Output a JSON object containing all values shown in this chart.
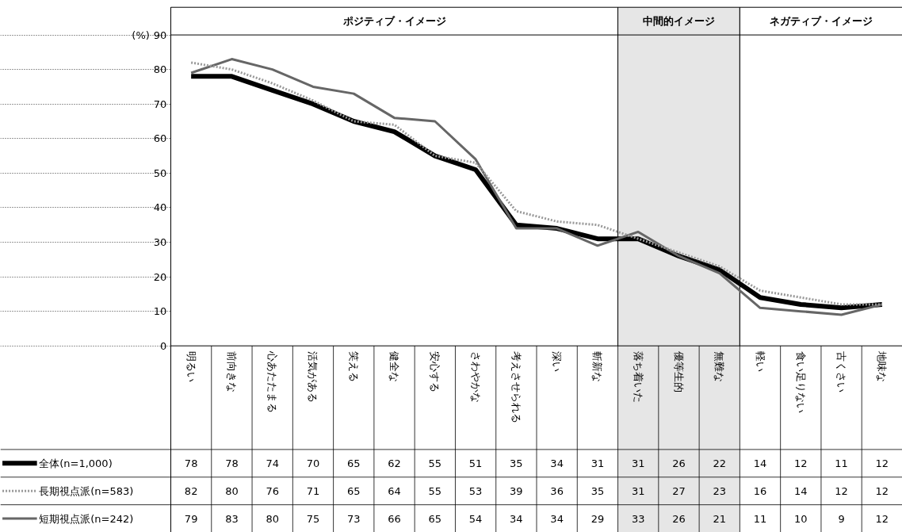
{
  "chart_data": {
    "type": "line",
    "ylabel": "(%)",
    "categories": [
      "明るい",
      "前向きな",
      "心あたたまる",
      "活気がある",
      "笑える",
      "健全な",
      "安心する",
      "さわやかな",
      "考えさせられる",
      "深い",
      "斬新な",
      "落ち着いた",
      "優等生的",
      "無難な",
      "軽い",
      "食い足りない",
      "古くさい",
      "地味な"
    ],
    "series": [
      {
        "name": "全体(n=1,000)",
        "color": "#000000",
        "line_style": "solid",
        "values": [
          78,
          78,
          74,
          70,
          65,
          62,
          55,
          51,
          35,
          34,
          31,
          31,
          26,
          22,
          14,
          12,
          11,
          12
        ]
      },
      {
        "name": "長期視点派(n=583)",
        "color": "#999999",
        "line_style": "dotted",
        "values": [
          82,
          80,
          76,
          71,
          65,
          64,
          55,
          53,
          39,
          36,
          35,
          31,
          27,
          23,
          16,
          14,
          12,
          12
        ]
      },
      {
        "name": "短期視点派(n=242)",
        "color": "#666666",
        "line_style": "solid",
        "values": [
          79,
          83,
          80,
          75,
          73,
          66,
          65,
          54,
          34,
          34,
          29,
          33,
          26,
          21,
          11,
          10,
          9,
          12
        ]
      }
    ],
    "ylim": [
      0,
      90
    ],
    "yticks": [
      0,
      10,
      20,
      30,
      40,
      50,
      60,
      70,
      80,
      90
    ],
    "grid": "y",
    "bands": [
      {
        "axis": "x",
        "from": "明るい",
        "to": "斬新な",
        "label": "ポジティブ・イメージ",
        "color": "#ffffff"
      },
      {
        "axis": "x",
        "from": "落ち着いた",
        "to": "無難な",
        "label": "中間的イメージ",
        "color": "#e6e6e6"
      },
      {
        "axis": "x",
        "from": "軽い",
        "to": "地味な",
        "label": "ネガティブ・イメージ",
        "color": "#ffffff"
      }
    ],
    "data_labels": true,
    "legend": "bottom left"
  }
}
